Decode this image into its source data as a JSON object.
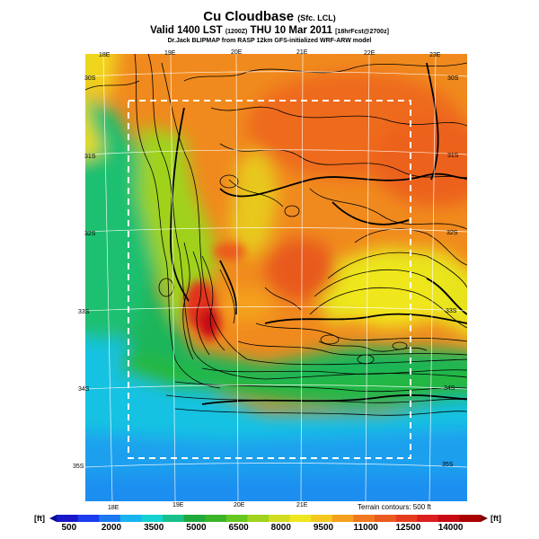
{
  "header": {
    "title": "Cu Cloudbase",
    "title_suffix": "(Sfc. LCL)",
    "valid_line": "Valid 1400 LST",
    "valid_zone": "(1200Z)",
    "valid_date": "THU 10 Mar 2011",
    "valid_run": "[18hrFcst@2700z]",
    "credit": "Dr.Jack BLIPMAP from RASP 12km GFS-initialized WRF-ARW model"
  },
  "grid": {
    "top_lon_labels": [
      "18E",
      "19E",
      "20E",
      "21E",
      "22E",
      "23E"
    ],
    "bottom_lon_labels": [
      "18E",
      "19E",
      "20E",
      "21E"
    ],
    "left_lat_labels": [
      "30S",
      "31S",
      "32S",
      "33S",
      "34S",
      "35S"
    ],
    "right_lat_labels": [
      "30S",
      "31S",
      "32S",
      "33S",
      "34S",
      "35S"
    ]
  },
  "footer": {
    "terrain_note": "Terrain contours: 500 ft"
  },
  "legend": {
    "unit": "[ft]",
    "labels": [
      "500",
      "2000",
      "3500",
      "5000",
      "6500",
      "8000",
      "9500",
      "11000",
      "12500",
      "14000"
    ],
    "colors": [
      "#1818c8",
      "#1c3cf0",
      "#1a78f0",
      "#18b4f0",
      "#14d2d2",
      "#18c08c",
      "#1eaa3c",
      "#3cb428",
      "#64c81e",
      "#a0d21e",
      "#d2dc1e",
      "#f0e61e",
      "#f5c81e",
      "#f5a01e",
      "#f0781e",
      "#eb5a1e",
      "#e63c1e",
      "#dc1e1e",
      "#c80a14",
      "#aa0000"
    ]
  }
}
